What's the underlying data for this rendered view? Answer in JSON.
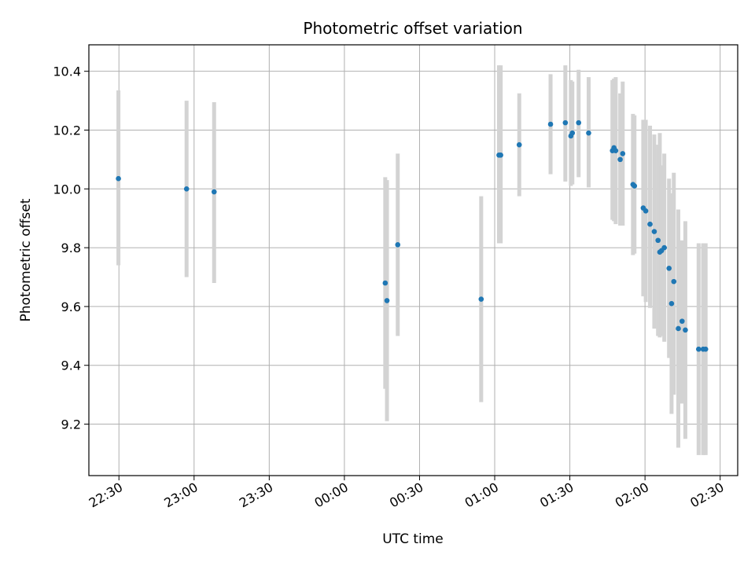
{
  "chart_data": {
    "type": "scatter",
    "title": "Photometric offset variation",
    "xlabel": "UTC time",
    "ylabel": "Photometric offset",
    "grid": true,
    "x_unit": "UTC time (HH:MM), spans midnight",
    "xlim": [
      "22:18",
      "02:37"
    ],
    "ylim": [
      9.025,
      10.49
    ],
    "x_ticks": [
      "22:30",
      "23:00",
      "23:30",
      "00:00",
      "00:30",
      "01:00",
      "01:30",
      "02:00",
      "02:30"
    ],
    "y_ticks": [
      "9.2",
      "9.4",
      "9.6",
      "9.8",
      "10.0",
      "10.2",
      "10.4"
    ],
    "error_bar_color": "#d3d3d3",
    "point_color": "#1f77b4",
    "points": [
      {
        "t": "22:29.8",
        "y": 10.035,
        "lo": 9.74,
        "hi": 10.335
      },
      {
        "t": "22:57.0",
        "y": 10.0,
        "lo": 9.7,
        "hi": 10.3
      },
      {
        "t": "23:08.0",
        "y": 9.99,
        "lo": 9.68,
        "hi": 10.295
      },
      {
        "t": "00:16.3",
        "y": 9.68,
        "lo": 9.32,
        "hi": 10.04
      },
      {
        "t": "00:17.0",
        "y": 9.62,
        "lo": 9.21,
        "hi": 10.03
      },
      {
        "t": "00:21.3",
        "y": 9.81,
        "lo": 9.5,
        "hi": 10.12
      },
      {
        "t": "00:54.6",
        "y": 9.625,
        "lo": 9.275,
        "hi": 9.975
      },
      {
        "t": "01:01.7",
        "y": 10.115,
        "lo": 9.815,
        "hi": 10.42
      },
      {
        "t": "01:02.4",
        "y": 10.115,
        "lo": 9.815,
        "hi": 10.42
      },
      {
        "t": "01:09.8",
        "y": 10.15,
        "lo": 9.975,
        "hi": 10.325
      },
      {
        "t": "01:22.3",
        "y": 10.22,
        "lo": 10.05,
        "hi": 10.39
      },
      {
        "t": "01:28.2",
        "y": 10.225,
        "lo": 10.025,
        "hi": 10.42
      },
      {
        "t": "01:30.4",
        "y": 10.18,
        "lo": 10.01,
        "hi": 10.37
      },
      {
        "t": "01:31.0",
        "y": 10.19,
        "lo": 10.015,
        "hi": 10.365
      },
      {
        "t": "01:33.5",
        "y": 10.225,
        "lo": 10.04,
        "hi": 10.405
      },
      {
        "t": "01:37.5",
        "y": 10.19,
        "lo": 10.005,
        "hi": 10.38
      },
      {
        "t": "01:47.0",
        "y": 10.13,
        "lo": 9.895,
        "hi": 10.37
      },
      {
        "t": "01:47.6",
        "y": 10.14,
        "lo": 9.89,
        "hi": 10.375
      },
      {
        "t": "01:48.3",
        "y": 10.13,
        "lo": 9.88,
        "hi": 10.38
      },
      {
        "t": "01:50.1",
        "y": 10.1,
        "lo": 9.875,
        "hi": 10.325
      },
      {
        "t": "01:51.1",
        "y": 10.12,
        "lo": 9.875,
        "hi": 10.365
      },
      {
        "t": "01:55.2",
        "y": 10.015,
        "lo": 9.775,
        "hi": 10.255
      },
      {
        "t": "01:55.8",
        "y": 10.01,
        "lo": 9.78,
        "hi": 10.25
      },
      {
        "t": "01:59.3",
        "y": 9.935,
        "lo": 9.635,
        "hi": 10.235
      },
      {
        "t": "02:00.3",
        "y": 9.925,
        "lo": 9.615,
        "hi": 10.235
      },
      {
        "t": "02:02.0",
        "y": 9.88,
        "lo": 9.595,
        "hi": 10.215
      },
      {
        "t": "02:03.7",
        "y": 9.855,
        "lo": 9.525,
        "hi": 10.185
      },
      {
        "t": "02:05.2",
        "y": 9.825,
        "lo": 9.5,
        "hi": 10.15
      },
      {
        "t": "02:05.9",
        "y": 9.785,
        "lo": 9.495,
        "hi": 10.19
      },
      {
        "t": "02:06.6",
        "y": 9.79,
        "lo": 9.5,
        "hi": 10.08
      },
      {
        "t": "02:07.7",
        "y": 9.8,
        "lo": 9.48,
        "hi": 10.12
      },
      {
        "t": "02:09.6",
        "y": 9.73,
        "lo": 9.425,
        "hi": 10.035
      },
      {
        "t": "02:10.6",
        "y": 9.61,
        "lo": 9.235,
        "hi": 9.985
      },
      {
        "t": "02:11.5",
        "y": 9.685,
        "lo": 9.3,
        "hi": 10.055
      },
      {
        "t": "02:13.3",
        "y": 9.525,
        "lo": 9.12,
        "hi": 9.93
      },
      {
        "t": "02:14.8",
        "y": 9.55,
        "lo": 9.27,
        "hi": 9.825
      },
      {
        "t": "02:16.1",
        "y": 9.52,
        "lo": 9.15,
        "hi": 9.89
      },
      {
        "t": "02:21.4",
        "y": 9.455,
        "lo": 9.095,
        "hi": 9.815
      },
      {
        "t": "02:23.2",
        "y": 9.455,
        "lo": 9.095,
        "hi": 9.815
      },
      {
        "t": "02:24.2",
        "y": 9.455,
        "lo": 9.095,
        "hi": 9.815
      }
    ]
  }
}
